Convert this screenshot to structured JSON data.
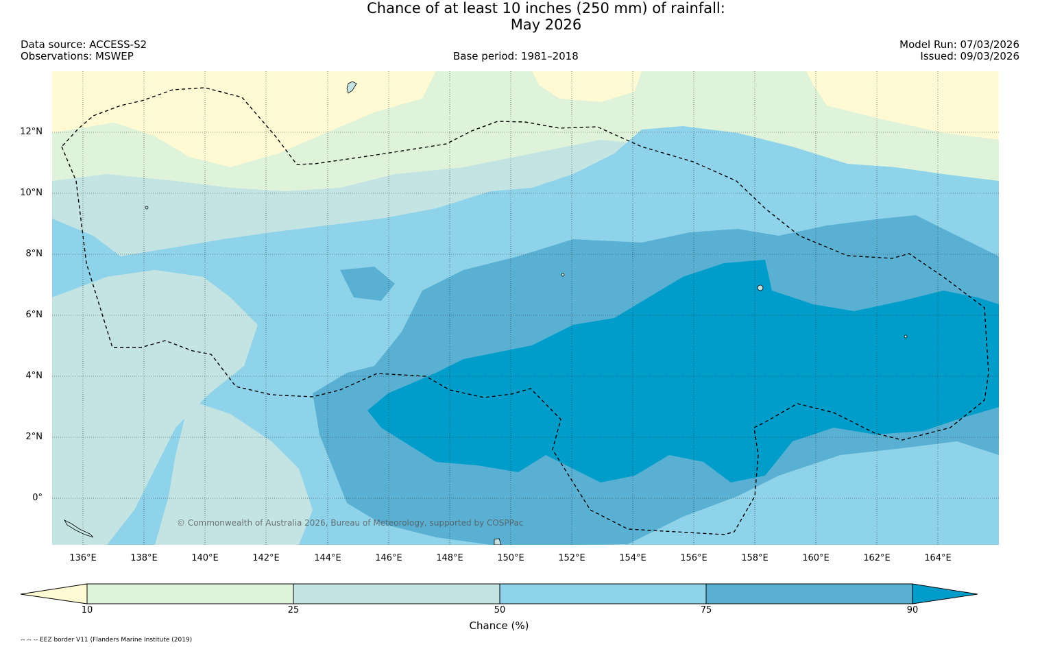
{
  "title": {
    "line1": "Chance of at least 10 inches (250  mm) of rainfall:",
    "line2": "May 2026"
  },
  "header": {
    "data_source": "Data source: ACCESS-S2",
    "observations": "Observations: MSWEP",
    "base_period": "Base period: 1981–2018",
    "model_run": "Model Run: 07/03/2026",
    "issued": "Issued: 09/03/2026"
  },
  "map": {
    "latitude_labels": [
      "12°N",
      "10°N",
      "8°N",
      "6°N",
      "4°N",
      "2°N",
      "0°"
    ],
    "longitude_labels": [
      "136°E",
      "138°E",
      "140°E",
      "142°E",
      "144°E",
      "146°E",
      "148°E",
      "150°E",
      "152°E",
      "154°E",
      "156°E",
      "158°E",
      "160°E",
      "162°E",
      "164°E"
    ],
    "copyright": "© Commonwealth of Australia 2026, Bureau of Meteorology, supported by COSPPac",
    "zone_colors": {
      "below_10": "#fffad4",
      "10_25": "#dff3da",
      "25_50": "#c3e4e3",
      "50_75": "#8fd3ea",
      "75_90": "#59b0d3",
      "above_90": "#009dca"
    }
  },
  "colorbar": {
    "ticks": [
      "10",
      "25",
      "50",
      "75",
      "90"
    ],
    "label": "Chance (%)",
    "colors": [
      "#fffad4",
      "#dff3da",
      "#c3e4e3",
      "#8fd3ea",
      "#59b0d3",
      "#009dca"
    ]
  },
  "footnote": "-- -- -- EEZ border V11 (Flanders Marine Institute (2019)"
}
